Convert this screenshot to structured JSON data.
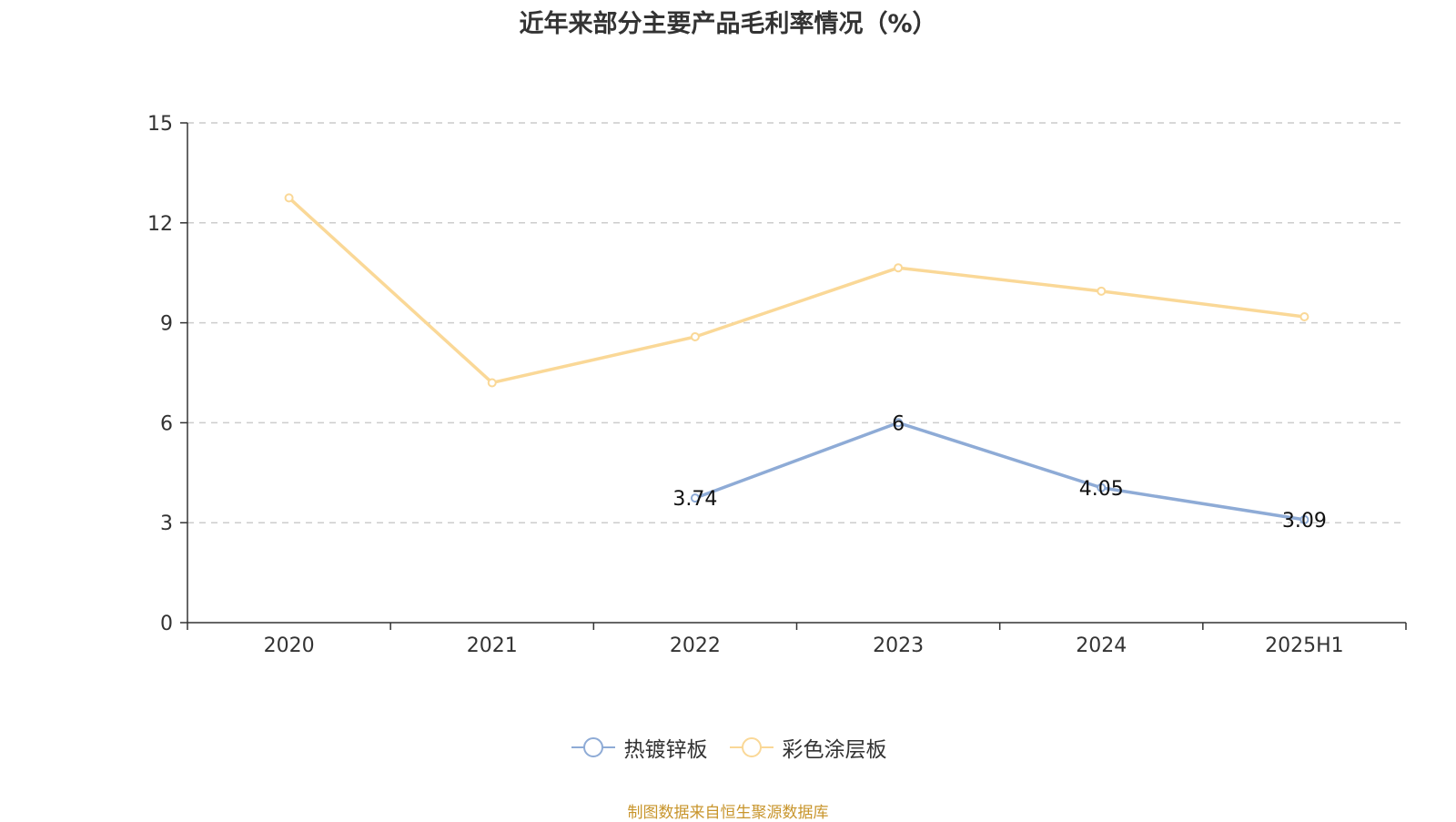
{
  "chart_data": {
    "type": "line",
    "title": "近年来部分主要产品毛利率情况（%）",
    "categories": [
      "2020",
      "2021",
      "2022",
      "2023",
      "2024",
      "2025H1"
    ],
    "ylim": [
      0,
      15
    ],
    "yticks": [
      0,
      3,
      6,
      9,
      12,
      15
    ],
    "grid": true,
    "legend_position": "bottom",
    "series": [
      {
        "name": "热镀锌板",
        "color": "#8eabd6",
        "values": [
          null,
          null,
          3.74,
          6,
          4.05,
          3.09
        ],
        "labels": [
          "",
          "",
          "3.74",
          "6",
          "4.05",
          "3.09"
        ]
      },
      {
        "name": "彩色涂层板",
        "color": "#fad897",
        "values": [
          12.75,
          7.2,
          8.58,
          10.65,
          9.95,
          9.18
        ],
        "labels": [
          "",
          "",
          "",
          "",
          "",
          ""
        ]
      }
    ]
  },
  "source_text": "制图数据来自恒生聚源数据库"
}
